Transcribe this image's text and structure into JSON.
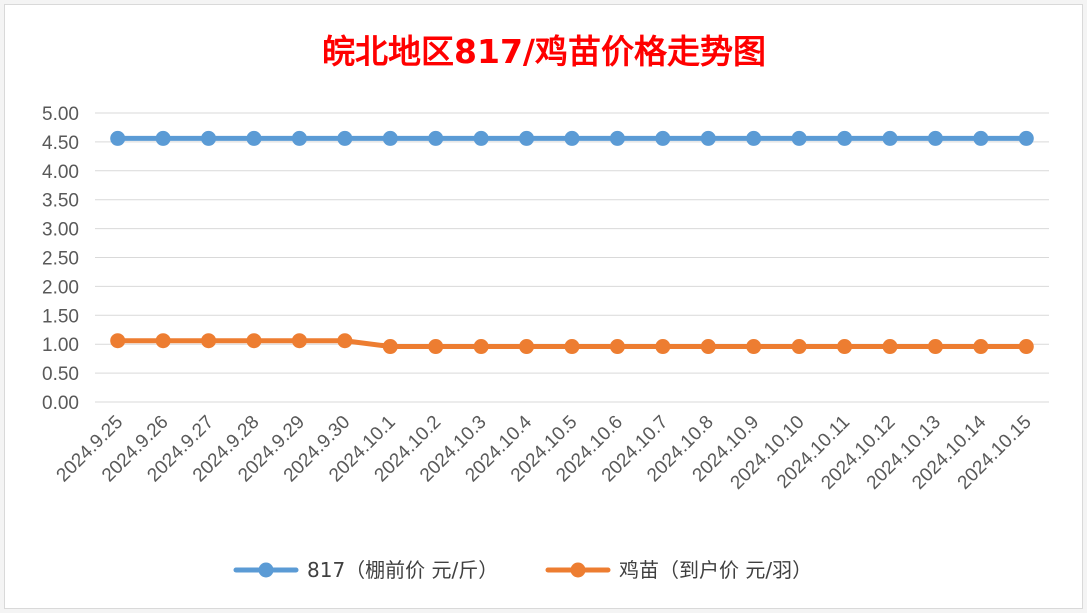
{
  "chart_data": {
    "type": "line",
    "title": "皖北地区817/鸡苗价格走势图",
    "xlabel": "",
    "ylabel": "",
    "ylim": [
      0,
      5
    ],
    "ytick_labels": [
      "0.00",
      "0.50",
      "1.00",
      "1.50",
      "2.00",
      "2.50",
      "3.00",
      "3.50",
      "4.00",
      "4.50",
      "5.00"
    ],
    "categories": [
      "2024.9.25",
      "2024.9.26",
      "2024.9.27",
      "2024.9.28",
      "2024.9.29",
      "2024.9.30",
      "2024.10.1",
      "2024.10.2",
      "2024.10.3",
      "2024.10.4",
      "2024.10.5",
      "2024.10.6",
      "2024.10.7",
      "2024.10.8",
      "2024.10.9",
      "2024.10.10",
      "2024.10.11",
      "2024.10.12",
      "2024.10.13",
      "2024.10.14",
      "2024.10.15"
    ],
    "series": [
      {
        "name": "817（棚前价 元/斤）",
        "color": "#5b9bd5",
        "values": [
          4.56,
          4.56,
          4.56,
          4.56,
          4.56,
          4.56,
          4.56,
          4.56,
          4.56,
          4.56,
          4.56,
          4.56,
          4.56,
          4.56,
          4.56,
          4.56,
          4.56,
          4.56,
          4.56,
          4.56,
          4.56
        ]
      },
      {
        "name": "鸡苗（到户价 元/羽）",
        "color": "#ed7d31",
        "values": [
          1.06,
          1.06,
          1.06,
          1.06,
          1.06,
          1.06,
          0.96,
          0.96,
          0.96,
          0.96,
          0.96,
          0.96,
          0.96,
          0.96,
          0.96,
          0.96,
          0.96,
          0.96,
          0.96,
          0.96,
          0.96
        ]
      }
    ],
    "grid": true,
    "legend_position": "bottom"
  }
}
